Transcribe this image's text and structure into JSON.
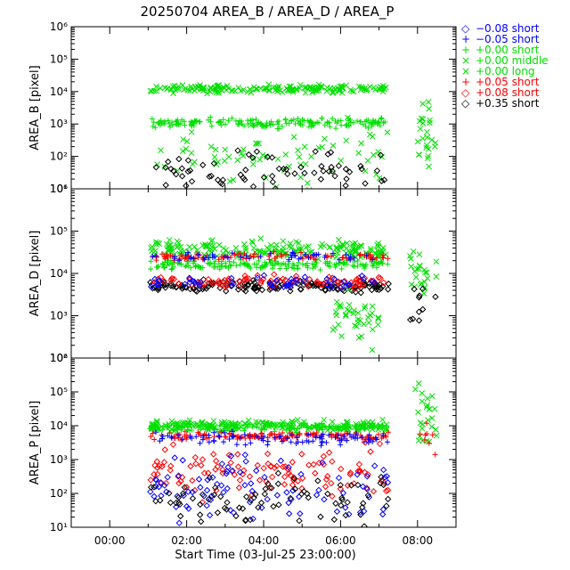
{
  "chart_data": {
    "type": "scatter",
    "title": "20250704 AREA_B / AREA_D / AREA_P",
    "xlabel": "Start Time (03-Jul-25 23:00:00)",
    "x_ticks": [
      "00:00",
      "02:00",
      "04:00",
      "06:00",
      "08:00"
    ],
    "x_range": [
      "23:00",
      "09:00"
    ],
    "y_scale": "log",
    "legend_placement": "right",
    "legend": [
      {
        "sign": "◇",
        "label": "−0.08 short",
        "color": "#0000ff"
      },
      {
        "sign": "+",
        "label": "−0.05 short",
        "color": "#0000ff"
      },
      {
        "sign": "+",
        "label": "+0.00 short",
        "color": "#00e000"
      },
      {
        "sign": "×",
        "label": "+0.00 middle",
        "color": "#00e000"
      },
      {
        "sign": "×",
        "label": "+0.00 long",
        "color": "#00e000"
      },
      {
        "sign": "+",
        "label": "+0.05 short",
        "color": "#ff0000"
      },
      {
        "sign": "◇",
        "label": "+0.08 short",
        "color": "#ff0000"
      },
      {
        "sign": "◇",
        "label": "+0.35 short",
        "color": "#000000"
      }
    ],
    "panels": [
      {
        "ylabel": "AREA_B [pixel]",
        "ylim": [
          10,
          1000000
        ],
        "y_ticks": [
          "10¹",
          "10²",
          "10³",
          "10⁴",
          "10⁵",
          "10⁶"
        ],
        "approx_levels": {
          "green_cross_upper": 12000,
          "green_plus_lower": 1000
        },
        "segments": [
          {
            "series": "+0.00 long",
            "marker": "x",
            "color": "#00e000",
            "x": [
              1.05,
              7.25
            ],
            "center": 12000,
            "spread": 0.08,
            "n": 180
          },
          {
            "series": "+0.00 short",
            "marker": "+",
            "color": "#00e000",
            "x": [
              1.05,
              7.25
            ],
            "center": 1100,
            "spread": 0.1,
            "n": 180
          },
          {
            "series": "+0.00 middle",
            "marker": "x",
            "color": "#00e000",
            "x": [
              1.05,
              7.25
            ],
            "center": 100,
            "spread": 0.7,
            "n": 80
          },
          {
            "series": "+0.00 middle",
            "marker": "x",
            "color": "#00e000",
            "x": [
              8.0,
              8.5
            ],
            "center": 300,
            "spread": 0.7,
            "n": 25
          },
          {
            "series": "+0.35 short",
            "marker": "d",
            "color": "#000000",
            "x": [
              1.1,
              7.2
            ],
            "center": 35,
            "spread": 0.4,
            "n": 70
          }
        ]
      },
      {
        "ylabel": "AREA_D [pixel]",
        "ylim": [
          100,
          1000000
        ],
        "y_ticks": [
          "10²",
          "10³",
          "10⁴",
          "10⁵",
          "10⁶"
        ],
        "approx_levels": {
          "green_upper": 35000,
          "green_lower": 15000,
          "black_red": 5000
        },
        "segments": [
          {
            "series": "+0.00 long",
            "marker": "x",
            "color": "#00e000",
            "x": [
              1.05,
              7.25
            ],
            "center": 35000,
            "spread": 0.15,
            "n": 180
          },
          {
            "series": "+0.00 short",
            "marker": "+",
            "color": "#00e000",
            "x": [
              1.05,
              7.25
            ],
            "center": 16000,
            "spread": 0.08,
            "n": 180
          },
          {
            "series": "+0.05 short",
            "marker": "+",
            "color": "#ff0000",
            "x": [
              1.05,
              7.25
            ],
            "center": 25000,
            "spread": 0.06,
            "n": 90
          },
          {
            "series": "−0.05 short",
            "marker": "+",
            "color": "#0000ff",
            "x": [
              1.05,
              7.25
            ],
            "center": 25000,
            "spread": 0.06,
            "n": 50
          },
          {
            "series": "+0.35 short",
            "marker": "d",
            "color": "#000000",
            "x": [
              1.05,
              7.25
            ],
            "center": 5000,
            "spread": 0.1,
            "n": 150
          },
          {
            "series": "+0.08 short",
            "marker": "d",
            "color": "#ff0000",
            "x": [
              1.05,
              7.25
            ],
            "center": 6500,
            "spread": 0.1,
            "n": 90
          },
          {
            "series": "−0.08 short",
            "marker": "d",
            "color": "#0000ff",
            "x": [
              1.05,
              7.25
            ],
            "center": 6000,
            "spread": 0.1,
            "n": 50
          },
          {
            "series": "+0.00 middle",
            "marker": "x",
            "color": "#00e000",
            "x": [
              5.8,
              7.0
            ],
            "center": 900,
            "spread": 0.4,
            "n": 40
          },
          {
            "series": "+0.00 middle",
            "marker": "x",
            "color": "#00e000",
            "x": [
              7.8,
              8.5
            ],
            "center": 12000,
            "spread": 0.4,
            "n": 25
          },
          {
            "series": "+0.35 short",
            "marker": "d",
            "color": "#000000",
            "x": [
              7.8,
              8.5
            ],
            "center": 2000,
            "spread": 0.4,
            "n": 10
          }
        ]
      },
      {
        "ylabel": "AREA_P [pixel]",
        "ylim": [
          10,
          1000000
        ],
        "y_ticks": [
          "10¹",
          "10²",
          "10³",
          "10⁴",
          "10⁵",
          "10⁶"
        ],
        "approx_levels": {
          "green": 10000,
          "red_blue_plus": 5000
        },
        "segments": [
          {
            "series": "+0.00 long",
            "marker": "x",
            "color": "#00e000",
            "x": [
              1.05,
              7.25
            ],
            "center": 10000,
            "spread": 0.1,
            "n": 200
          },
          {
            "series": "+0.00 short",
            "marker": "+",
            "color": "#00e000",
            "x": [
              1.05,
              7.25
            ],
            "center": 9000,
            "spread": 0.08,
            "n": 120
          },
          {
            "series": "+0.05 short",
            "marker": "+",
            "color": "#ff0000",
            "x": [
              1.05,
              7.25
            ],
            "center": 5000,
            "spread": 0.08,
            "n": 140
          },
          {
            "series": "−0.05 short",
            "marker": "+",
            "color": "#0000ff",
            "x": [
              1.05,
              7.25
            ],
            "center": 4000,
            "spread": 0.12,
            "n": 90
          },
          {
            "series": "+0.08 short",
            "marker": "d",
            "color": "#ff0000",
            "x": [
              1.05,
              7.25
            ],
            "center": 400,
            "spread": 0.5,
            "n": 110
          },
          {
            "series": "−0.08 short",
            "marker": "d",
            "color": "#0000ff",
            "x": [
              1.05,
              7.25
            ],
            "center": 150,
            "spread": 0.6,
            "n": 90
          },
          {
            "series": "+0.35 short",
            "marker": "d",
            "color": "#000000",
            "x": [
              1.05,
              7.25
            ],
            "center": 60,
            "spread": 0.6,
            "n": 80
          },
          {
            "series": "+0.00 middle",
            "marker": "x",
            "color": "#00e000",
            "x": [
              7.9,
              8.5
            ],
            "center": 20000,
            "spread": 0.8,
            "n": 25
          },
          {
            "series": "+0.05 short",
            "marker": "+",
            "color": "#ff0000",
            "x": [
              8.0,
              8.5
            ],
            "center": 3000,
            "spread": 0.6,
            "n": 8
          }
        ]
      }
    ]
  }
}
